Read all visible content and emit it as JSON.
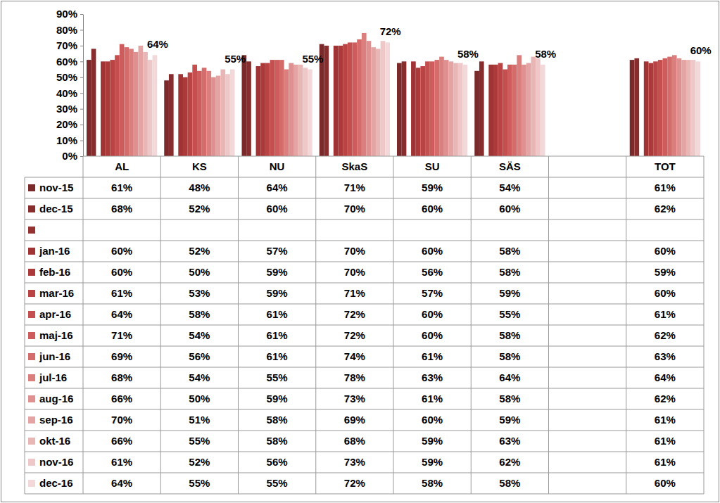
{
  "chart_data": {
    "type": "bar",
    "categories": [
      "AL",
      "KS",
      "NU",
      "SkaS",
      "SU",
      "SÄS",
      null,
      "TOT"
    ],
    "ylim": [
      0,
      90
    ],
    "yticks": [
      {
        "value": 0,
        "label": "0%"
      },
      {
        "value": 10,
        "label": "10%"
      },
      {
        "value": 20,
        "label": "20%"
      },
      {
        "value": 30,
        "label": "30%"
      },
      {
        "value": 40,
        "label": "40%"
      },
      {
        "value": 50,
        "label": "50%"
      },
      {
        "value": 60,
        "label": "60%"
      },
      {
        "value": 70,
        "label": "70%"
      },
      {
        "value": 80,
        "label": "80%"
      },
      {
        "value": 90,
        "label": "90%"
      }
    ],
    "grid": false,
    "series": [
      {
        "name": "nov-15",
        "color": "#7a2a2a",
        "values": [
          61,
          48,
          64,
          71,
          59,
          54,
          null,
          61
        ],
        "value_labels": [
          "61%",
          "48%",
          "64%",
          "71%",
          "59%",
          "54%",
          null,
          "61%"
        ]
      },
      {
        "name": "dec-15",
        "color": "#882d2d",
        "values": [
          68,
          52,
          60,
          70,
          60,
          60,
          null,
          62
        ],
        "value_labels": [
          "68%",
          "52%",
          "60%",
          "70%",
          "60%",
          "60%",
          null,
          "62%"
        ]
      },
      {
        "name": null,
        "color": "#943131",
        "values": [
          null,
          null,
          null,
          null,
          null,
          null,
          null,
          null
        ]
      },
      {
        "name": "jan-16",
        "color": "#a03434",
        "values": [
          60,
          52,
          57,
          70,
          60,
          58,
          null,
          60
        ],
        "value_labels": [
          "60%",
          "52%",
          "57%",
          "70%",
          "60%",
          "58%",
          null,
          "60%"
        ]
      },
      {
        "name": "feb-16",
        "color": "#ad3a3a",
        "values": [
          60,
          50,
          59,
          70,
          56,
          58,
          null,
          59
        ],
        "value_labels": [
          "60%",
          "50%",
          "59%",
          "70%",
          "56%",
          "58%",
          null,
          "59%"
        ]
      },
      {
        "name": "mar-16",
        "color": "#ba4343",
        "values": [
          61,
          53,
          59,
          71,
          57,
          59,
          null,
          60
        ],
        "value_labels": [
          "61%",
          "53%",
          "59%",
          "71%",
          "57%",
          "59%",
          null,
          "60%"
        ]
      },
      {
        "name": "apr-16",
        "color": "#c54e4e",
        "values": [
          64,
          58,
          61,
          72,
          60,
          55,
          null,
          61
        ],
        "value_labels": [
          "64%",
          "58%",
          "61%",
          "72%",
          "60%",
          "55%",
          null,
          "61%"
        ]
      },
      {
        "name": "maj-16",
        "color": "#ce5c5c",
        "values": [
          71,
          54,
          61,
          72,
          60,
          58,
          null,
          62
        ],
        "value_labels": [
          "71%",
          "54%",
          "61%",
          "72%",
          "60%",
          "58%",
          null,
          "62%"
        ]
      },
      {
        "name": "jun-16",
        "color": "#d46c6c",
        "values": [
          69,
          56,
          61,
          74,
          61,
          58,
          null,
          63
        ],
        "value_labels": [
          "69%",
          "56%",
          "61%",
          "74%",
          "61%",
          "58%",
          null,
          "63%"
        ]
      },
      {
        "name": "jul-16",
        "color": "#da7e7e",
        "values": [
          68,
          54,
          55,
          78,
          63,
          64,
          null,
          64
        ],
        "value_labels": [
          "68%",
          "54%",
          "55%",
          "78%",
          "63%",
          "64%",
          null,
          "64%"
        ]
      },
      {
        "name": "aug-16",
        "color": "#df9191",
        "values": [
          66,
          50,
          59,
          73,
          61,
          58,
          null,
          62
        ],
        "value_labels": [
          "66%",
          "50%",
          "59%",
          "73%",
          "61%",
          "58%",
          null,
          "62%"
        ]
      },
      {
        "name": "sep-16",
        "color": "#e4a4a4",
        "values": [
          70,
          51,
          58,
          69,
          60,
          59,
          null,
          61
        ],
        "value_labels": [
          "70%",
          "51%",
          "58%",
          "69%",
          "60%",
          "59%",
          null,
          "61%"
        ]
      },
      {
        "name": "okt-16",
        "color": "#e9b6b6",
        "values": [
          66,
          55,
          58,
          68,
          59,
          63,
          null,
          61
        ],
        "value_labels": [
          "66%",
          "55%",
          "58%",
          "68%",
          "59%",
          "63%",
          null,
          "61%"
        ]
      },
      {
        "name": "nov-16",
        "color": "#eec8c8",
        "values": [
          61,
          52,
          56,
          73,
          59,
          62,
          null,
          61
        ],
        "value_labels": [
          "61%",
          "52%",
          "56%",
          "73%",
          "59%",
          "62%",
          null,
          "61%"
        ]
      },
      {
        "name": "dec-16",
        "color": "#f2d8d8",
        "values": [
          64,
          55,
          55,
          72,
          58,
          58,
          null,
          60
        ],
        "value_labels": [
          "64%",
          "55%",
          "55%",
          "72%",
          "58%",
          "58%",
          null,
          "60%"
        ],
        "data_labels": true
      }
    ]
  }
}
